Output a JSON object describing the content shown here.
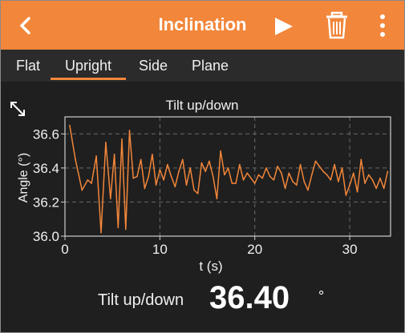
{
  "header": {
    "title": "Inclination",
    "back_icon": "chevron-left-icon",
    "play_icon": "play-icon",
    "trash_icon": "trash-icon",
    "more_icon": "more-vertical-icon",
    "accent_color": "#f2863a"
  },
  "tabs": [
    {
      "label": "Flat",
      "active": false
    },
    {
      "label": "Upright",
      "active": true
    },
    {
      "label": "Side",
      "active": false
    },
    {
      "label": "Plane",
      "active": false
    }
  ],
  "chart_data": {
    "type": "line",
    "title": "Tilt up/down",
    "xlabel": "t (s)",
    "ylabel": "Angle (°)",
    "xlim": [
      0,
      34.3
    ],
    "ylim": [
      36.0,
      36.7
    ],
    "xticks": [
      0,
      10,
      20,
      30
    ],
    "yticks": [
      36.0,
      36.2,
      36.4,
      36.6
    ],
    "grid": true,
    "line_color": "#f2863a",
    "series": [
      {
        "x": [
          0.5,
          1.1,
          1.8,
          2.4,
          2.8,
          3.3,
          3.8,
          4.3,
          4.8,
          5.2,
          5.6,
          6.0,
          6.4,
          6.8,
          7.2,
          7.6,
          8.0,
          8.4,
          8.8,
          9.2,
          9.6,
          10.0,
          10.4,
          10.8,
          11.2,
          11.6,
          12.0,
          12.4,
          12.8,
          13.2,
          13.6,
          14.0,
          14.4,
          14.8,
          15.2,
          15.6,
          16.0,
          16.4,
          16.8,
          17.2,
          17.6,
          18.0,
          18.4,
          18.8,
          19.2,
          19.6,
          20.0,
          20.4,
          20.8,
          21.2,
          21.6,
          22.0,
          22.4,
          22.8,
          23.2,
          23.6,
          24.0,
          24.4,
          24.8,
          25.2,
          25.6,
          26.0,
          26.4,
          26.8,
          27.2,
          27.6,
          28.0,
          28.4,
          28.8,
          29.2,
          29.6,
          30.0,
          30.4,
          30.8,
          31.2,
          31.6,
          32.0,
          32.4,
          32.8,
          33.2,
          33.6,
          34.0
        ],
        "y": [
          36.65,
          36.45,
          36.27,
          36.33,
          36.31,
          36.47,
          36.02,
          36.55,
          36.22,
          36.48,
          36.05,
          36.57,
          36.04,
          36.62,
          36.34,
          36.35,
          36.45,
          36.28,
          36.35,
          36.48,
          36.3,
          36.39,
          36.33,
          36.42,
          36.35,
          36.29,
          36.38,
          36.45,
          36.3,
          36.4,
          36.27,
          36.25,
          36.43,
          36.38,
          36.44,
          36.35,
          36.22,
          36.5,
          36.36,
          36.4,
          36.31,
          36.31,
          36.42,
          36.33,
          36.37,
          36.34,
          36.31,
          36.36,
          36.34,
          36.4,
          36.35,
          36.33,
          36.41,
          36.37,
          36.28,
          36.37,
          36.32,
          36.3,
          36.42,
          36.32,
          36.27,
          36.36,
          36.44,
          36.41,
          36.38,
          36.36,
          36.33,
          36.42,
          36.32,
          36.4,
          36.24,
          36.3,
          36.37,
          36.26,
          36.45,
          36.31,
          36.36,
          36.33,
          36.28,
          36.34,
          36.28,
          36.38
        ]
      }
    ]
  },
  "readout": {
    "label": "Tilt up/down",
    "value": "36.40",
    "unit": "°"
  },
  "expand_icon": "expand-diagonal-icon"
}
